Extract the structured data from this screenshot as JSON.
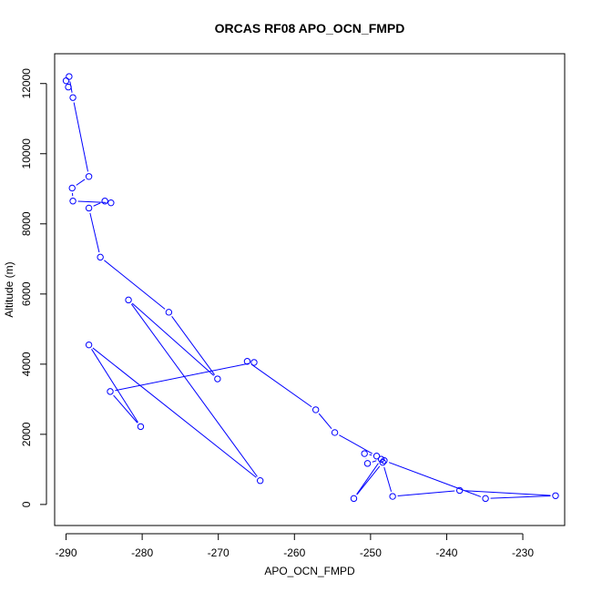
{
  "chart_data": {
    "type": "scatter",
    "title": "ORCAS RF08 APO_OCN_FMPD",
    "xlabel": "APO_OCN_FMPD",
    "ylabel": "Altitude (m)",
    "xlim": [
      -291.5,
      -224.5
    ],
    "ylim": [
      -600,
      12850
    ],
    "x_ticks": [
      -290,
      -280,
      -270,
      -260,
      -250,
      -240,
      -230
    ],
    "x_tick_labels": [
      "-290",
      "-280",
      "-270",
      "-260",
      "-250",
      "-240",
      "-230"
    ],
    "y_ticks": [
      0,
      2000,
      4000,
      6000,
      8000,
      10000,
      12000
    ],
    "y_tick_labels": [
      "0",
      "2000",
      "4000",
      "6000",
      "8000",
      "10000",
      "12000"
    ],
    "grid": false,
    "marker": "open-circle",
    "line_style": "connected",
    "colors": {
      "series": "#0000ff",
      "axes": "#000000",
      "background": "#ffffff"
    },
    "series": [
      {
        "x": [
          -290.0,
          -289.7,
          -289.6,
          -289.1,
          -287.0,
          -289.2,
          -289.1,
          -284.1,
          -284.9,
          -287.0,
          -285.5,
          -276.5,
          -270.1,
          -281.8,
          -264.5,
          -287.0,
          -280.2,
          -284.2,
          -265.3,
          -266.2,
          -257.2,
          -254.7,
          -249.2,
          -250.8,
          -250.4,
          -248.6,
          -252.2,
          -248.4,
          -247.1,
          -238.3,
          -225.7,
          -234.9,
          -248.2
        ],
        "y": [
          12080,
          11900,
          12200,
          11600,
          9350,
          9020,
          8650,
          8600,
          8650,
          8450,
          7050,
          5480,
          3580,
          5830,
          680,
          4550,
          2220,
          3220,
          4050,
          4080,
          2700,
          2050,
          1380,
          1450,
          1170,
          1290,
          170,
          1200,
          230,
          400,
          250,
          170,
          1250
        ]
      }
    ]
  }
}
